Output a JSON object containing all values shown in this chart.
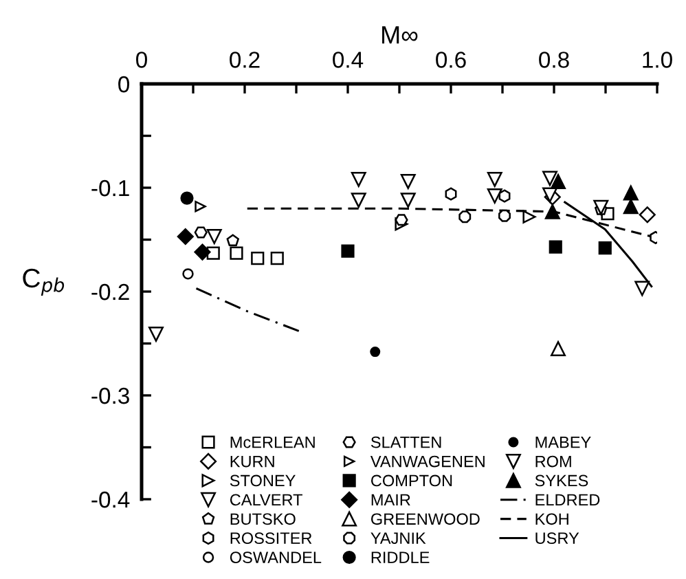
{
  "chart_data": {
    "type": "scatter",
    "xlabel": "M∞",
    "ylabel": "C$_{pb}$",
    "xlim": [
      0,
      1.0
    ],
    "ylim": [
      -0.4,
      0
    ],
    "xticks": [
      0,
      {
        "value": 0.1,
        "label": null
      },
      0.2,
      {
        "value": 0.3,
        "label": null
      },
      0.4,
      {
        "value": 0.5,
        "label": null
      },
      0.6,
      {
        "value": 0.7,
        "label": null
      },
      0.8,
      {
        "value": 0.9,
        "label": null
      },
      {
        "value": 1.0,
        "label": "1.0"
      }
    ],
    "yticks": [
      0,
      {
        "value": -0.05,
        "label": null
      },
      -0.1,
      {
        "value": -0.15,
        "label": null
      },
      -0.2,
      {
        "value": -0.25,
        "label": null
      },
      -0.3,
      {
        "value": -0.35,
        "label": null
      },
      -0.4
    ],
    "grid": false,
    "legend": "bottom",
    "series": [
      {
        "name": "McERLEAN",
        "marker": "square",
        "color": "#000000",
        "x": [
          0.139,
          0.184,
          0.225,
          0.263,
          0.904
        ],
        "values": [
          -0.163,
          -0.163,
          -0.168,
          -0.168,
          -0.125
        ]
      },
      {
        "name": "KURN",
        "marker": "diamond",
        "color": "#000000",
        "x": [
          0.797,
          0.981
        ],
        "values": [
          -0.109,
          -0.126
        ]
      },
      {
        "name": "STONEY",
        "color": "#000000",
        "x": [
          0.504,
          0.752
        ],
        "values": [
          -0.135,
          -0.128
        ]
      },
      {
        "name": "CALVERT",
        "color": "#000000",
        "x": [
          0.028,
          0.141
        ],
        "values": [
          -0.241,
          -0.147
        ]
      },
      {
        "name": "BUTSKO",
        "color": "#000000",
        "x": [
          0.177,
          0.891
        ],
        "values": [
          -0.151,
          -0.121
        ]
      },
      {
        "name": "ROSSITER",
        "color": "#000000",
        "x": [
          0.6,
          0.704,
          0.997
        ],
        "values": [
          -0.106,
          -0.108,
          -0.148
        ]
      },
      {
        "name": "OSWANDEL",
        "marker": "circle",
        "color": "#000000",
        "x": [
          0.09
        ],
        "values": [
          -0.183
        ]
      },
      {
        "name": "SLATTEN",
        "color": "#000000",
        "x": [
          0.115,
          0.504
        ],
        "values": [
          -0.143,
          -0.131
        ]
      },
      {
        "name": "VANWAGENEN",
        "color": "#000000",
        "x": [
          0.114
        ],
        "values": [
          -0.118
        ]
      },
      {
        "name": "COMPTON",
        "marker": "square",
        "color": "#000000",
        "x": [
          0.4,
          0.803,
          0.899
        ],
        "values": [
          -0.161,
          -0.157,
          -0.158
        ]
      },
      {
        "name": "MAIR",
        "marker": "diamond",
        "color": "#000000",
        "x": [
          0.085,
          0.118
        ],
        "values": [
          -0.147,
          -0.162
        ]
      },
      {
        "name": "GREENWOOD",
        "marker": "triangle",
        "color": "#000000",
        "x": [
          0.808
        ],
        "values": [
          -0.255
        ]
      },
      {
        "name": "YAJNIK",
        "color": "#000000",
        "x": [
          0.627,
          0.704
        ],
        "values": [
          -0.128,
          -0.127
        ]
      },
      {
        "name": "RIDDLE",
        "marker": "circle",
        "color": "#000000",
        "x": [
          0.088
        ],
        "values": [
          -0.11
        ]
      },
      {
        "name": "MABEY",
        "marker": "circle",
        "color": "#000000",
        "x": [
          0.453
        ],
        "values": [
          -0.258
        ]
      },
      {
        "name": "ROM",
        "color": "#000000",
        "x": [
          0.421,
          0.421,
          0.517,
          0.517,
          0.685,
          0.685,
          0.792,
          0.792,
          0.891,
          0.971
        ],
        "values": [
          -0.092,
          -0.112,
          -0.094,
          -0.112,
          -0.092,
          -0.108,
          -0.091,
          -0.107,
          -0.119,
          -0.197
        ]
      },
      {
        "name": "SYKES",
        "marker": "triangle",
        "color": "#000000",
        "x": [
          0.808,
          0.797,
          0.949,
          0.949
        ],
        "values": [
          -0.094,
          -0.123,
          -0.105,
          -0.118
        ]
      },
      {
        "name": "ELDRED",
        "type": "line",
        "line_style": "dashdot",
        "color": "#000000",
        "x": [
          0.106,
          0.205,
          0.305
        ],
        "values": [
          -0.197,
          -0.219,
          -0.238
        ]
      },
      {
        "name": "KOH",
        "type": "line",
        "line_style": "dashed",
        "color": "#000000",
        "x": [
          0.205,
          0.5,
          0.8,
          0.997
        ],
        "values": [
          -0.12,
          -0.12,
          -0.123,
          -0.148
        ]
      },
      {
        "name": "USRY",
        "type": "line",
        "line_style": "solid",
        "color": "#000000",
        "x": [
          0.821,
          0.899,
          0.952,
          0.989
        ],
        "values": [
          -0.114,
          -0.14,
          -0.171,
          -0.195
        ]
      }
    ]
  }
}
